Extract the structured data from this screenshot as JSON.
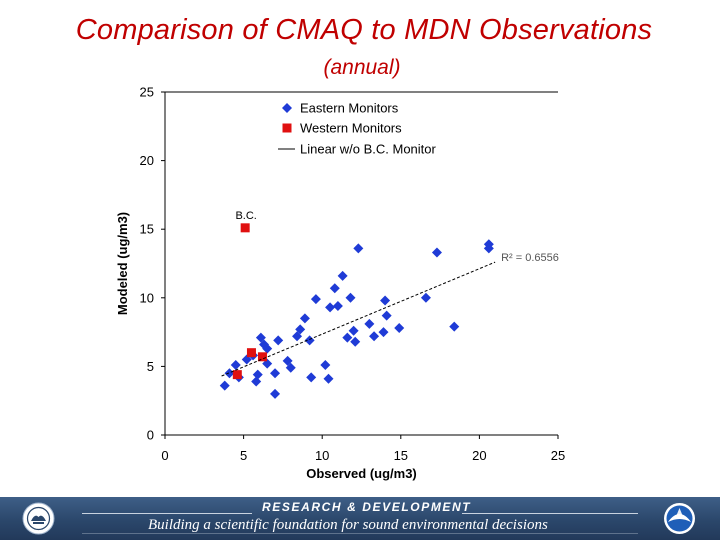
{
  "slide": {
    "title": "Comparison of CMAQ to MDN Observations",
    "subtitle": "(annual)"
  },
  "footer": {
    "heading": "RESEARCH & DEVELOPMENT",
    "tagline": "Building a scientific foundation for sound environmental decisions",
    "left_logo_icon": "epa-seal-icon",
    "right_logo_icon": "noaa-logo-icon"
  },
  "colors": {
    "title": "#c00000",
    "eastern": "#1f3bd6",
    "western": "#e01010",
    "footer": "#2b476b"
  },
  "chart_data": {
    "type": "scatter",
    "xlabel": "Observed (ug/m3)",
    "ylabel": "Modeled (ug/m3)",
    "xlim": [
      0,
      25
    ],
    "ylim": [
      0,
      25
    ],
    "xticks": [
      0,
      5,
      10,
      15,
      20,
      25
    ],
    "yticks": [
      0,
      5,
      10,
      15,
      20,
      25
    ],
    "grid": "horizontal top line only",
    "legend_position": "top-center",
    "series": [
      {
        "name": "Eastern Monitors",
        "marker": "diamond",
        "color": "#1f3bd6",
        "points": [
          [
            3.8,
            3.6
          ],
          [
            4.1,
            4.5
          ],
          [
            4.5,
            5.1
          ],
          [
            4.7,
            4.2
          ],
          [
            5.2,
            5.5
          ],
          [
            5.6,
            5.8
          ],
          [
            5.8,
            3.9
          ],
          [
            5.9,
            4.4
          ],
          [
            6.1,
            7.1
          ],
          [
            6.3,
            6.6
          ],
          [
            6.5,
            5.2
          ],
          [
            6.5,
            6.3
          ],
          [
            7.0,
            4.5
          ],
          [
            7.0,
            3.0
          ],
          [
            7.2,
            6.9
          ],
          [
            7.8,
            5.4
          ],
          [
            8.0,
            4.9
          ],
          [
            8.4,
            7.2
          ],
          [
            8.6,
            7.7
          ],
          [
            8.9,
            8.5
          ],
          [
            9.2,
            6.9
          ],
          [
            9.3,
            4.2
          ],
          [
            9.6,
            9.9
          ],
          [
            10.2,
            5.1
          ],
          [
            10.4,
            4.1
          ],
          [
            10.5,
            9.3
          ],
          [
            10.8,
            10.7
          ],
          [
            11.0,
            9.4
          ],
          [
            11.3,
            11.6
          ],
          [
            11.6,
            7.1
          ],
          [
            11.8,
            10.0
          ],
          [
            12.0,
            7.6
          ],
          [
            12.1,
            6.8
          ],
          [
            12.3,
            13.6
          ],
          [
            13.0,
            8.1
          ],
          [
            13.3,
            7.2
          ],
          [
            13.9,
            7.5
          ],
          [
            14.0,
            9.8
          ],
          [
            14.1,
            8.7
          ],
          [
            14.9,
            7.8
          ],
          [
            16.6,
            10.0
          ],
          [
            17.3,
            13.3
          ],
          [
            18.4,
            7.9
          ],
          [
            20.6,
            13.6
          ],
          [
            20.6,
            13.9
          ]
        ]
      },
      {
        "name": "Western Monitors",
        "marker": "square",
        "color": "#e01010",
        "points": [
          [
            5.1,
            15.1
          ],
          [
            4.6,
            4.4
          ],
          [
            5.5,
            6.0
          ],
          [
            6.2,
            5.7
          ]
        ]
      },
      {
        "name": "Linear w/o B.C. Monitor",
        "type": "line",
        "style": "dashed",
        "color": "#000000",
        "points": [
          [
            3.6,
            4.3
          ],
          [
            21.0,
            12.6
          ]
        ]
      }
    ],
    "annotations": [
      {
        "text": "B.C.",
        "x": 5.1,
        "y": 15.1,
        "anchor": "above-marker"
      },
      {
        "text": "R² = 0.6556",
        "x": 21.0,
        "y": 12.6,
        "anchor": "right-of-line-end"
      }
    ]
  }
}
